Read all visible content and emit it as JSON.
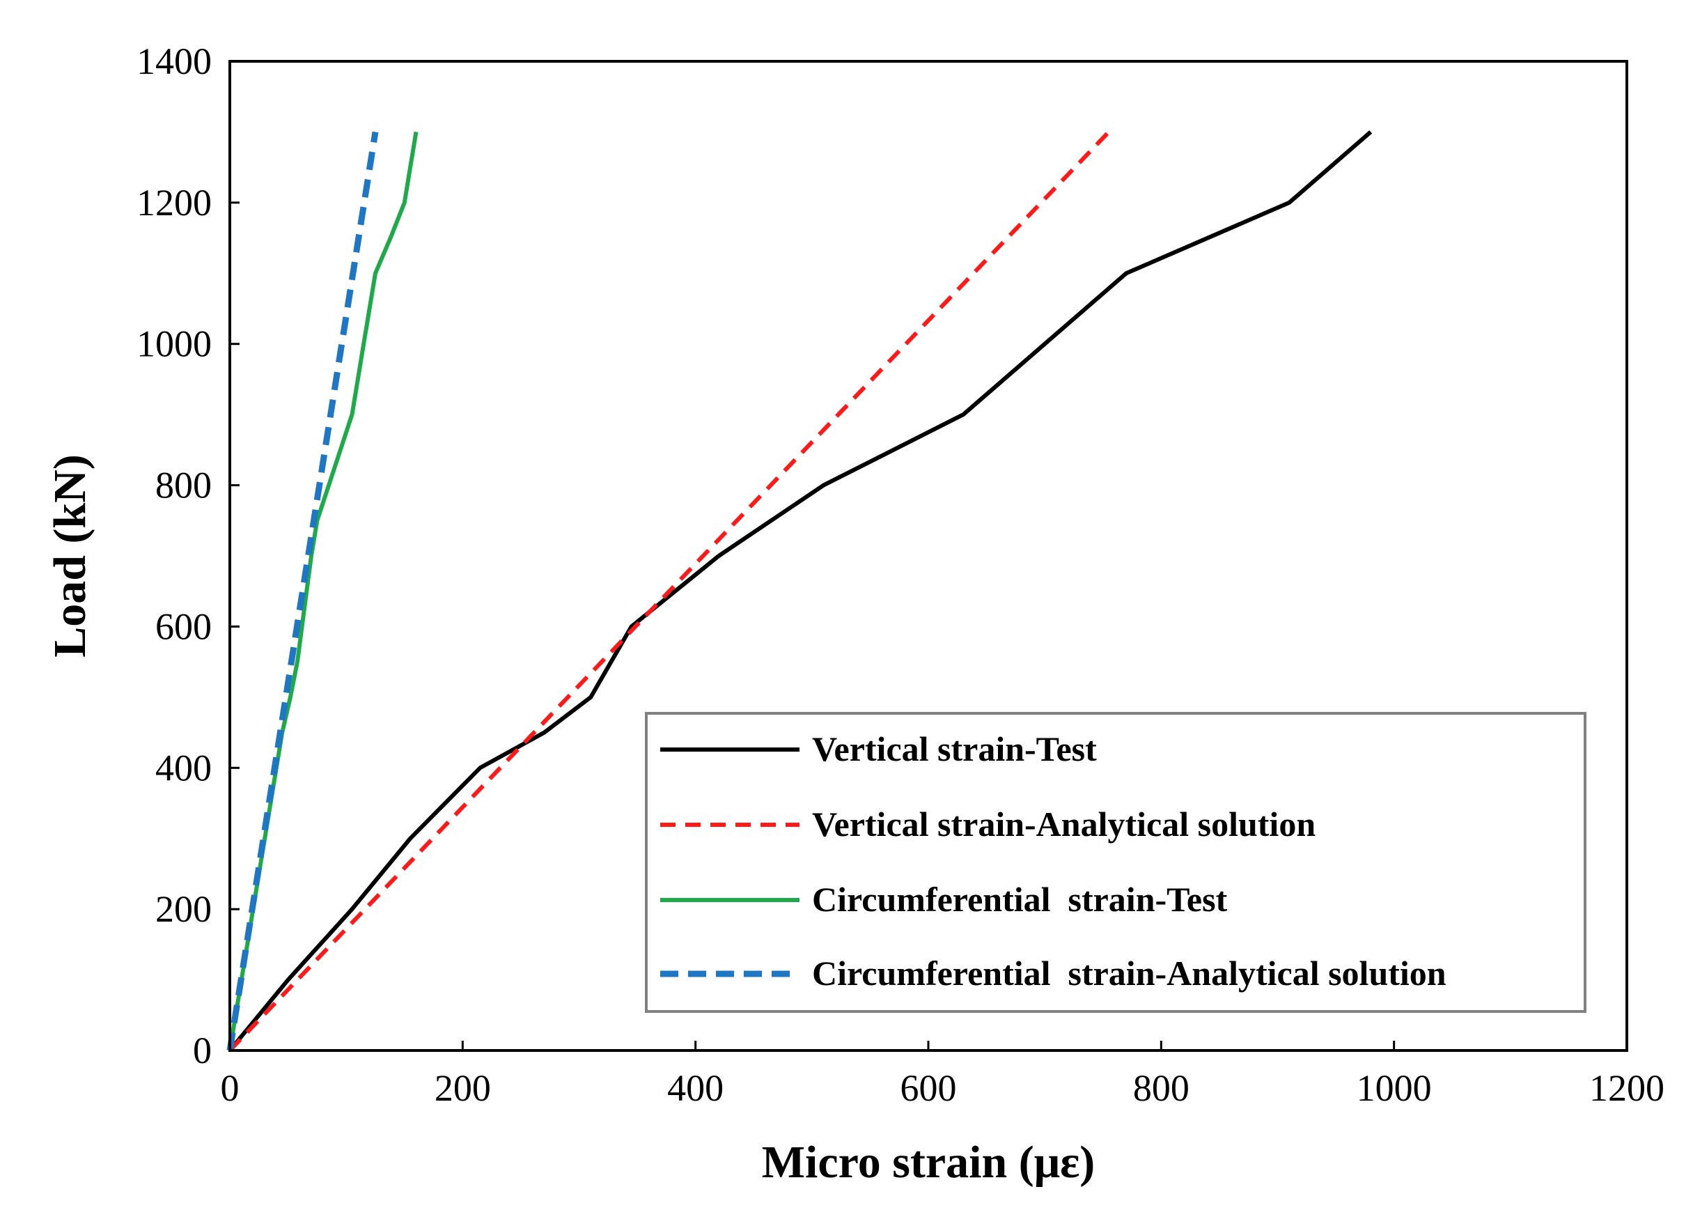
{
  "chart_data": {
    "type": "line",
    "xlabel": "Micro strain (με)",
    "ylabel": "Load (kN)",
    "xlim": [
      0,
      1200
    ],
    "ylim": [
      0,
      1400
    ],
    "xticks": [
      0,
      200,
      400,
      600,
      800,
      1000,
      1200
    ],
    "yticks": [
      0,
      200,
      400,
      600,
      800,
      1000,
      1200,
      1400
    ],
    "xtick_labels": [
      "0",
      "200",
      "400",
      "600",
      "800",
      "1000",
      "1200"
    ],
    "ytick_labels": [
      "0",
      "200",
      "400",
      "600",
      "800",
      "1000",
      "1200",
      "1400"
    ],
    "grid": false,
    "legend_position": "bottom-right",
    "series": [
      {
        "name": "Vertical strain-Test",
        "color": "#000000",
        "style": "solid",
        "x": [
          0,
          50,
          105,
          155,
          215,
          270,
          310,
          345,
          420,
          510,
          630,
          700,
          770,
          910,
          980
        ],
        "y": [
          0,
          100,
          200,
          300,
          400,
          450,
          500,
          600,
          700,
          800,
          900,
          1000,
          1100,
          1200,
          1300
        ]
      },
      {
        "name": "Vertical strain-Analytical solution",
        "color": "#ff1a1a",
        "style": "dashed",
        "x": [
          0,
          755
        ],
        "y": [
          0,
          1300
        ]
      },
      {
        "name": "Circumferential  strain-Test",
        "color": "#1faa4a",
        "style": "solid",
        "x": [
          0,
          5,
          10,
          15,
          20,
          25,
          35,
          45,
          52,
          58,
          62,
          66,
          70,
          75,
          85,
          95,
          105,
          115,
          125,
          138,
          150,
          155,
          160
        ],
        "y": [
          0,
          50,
          100,
          150,
          200,
          250,
          350,
          450,
          500,
          550,
          600,
          650,
          700,
          750,
          800,
          850,
          900,
          1000,
          1100,
          1150,
          1200,
          1250,
          1300
        ]
      },
      {
        "name": "Circumferential  strain-Analytical solution",
        "color": "#1f77c4",
        "style": "dashed",
        "x": [
          0,
          125
        ],
        "y": [
          0,
          1300
        ]
      }
    ]
  }
}
